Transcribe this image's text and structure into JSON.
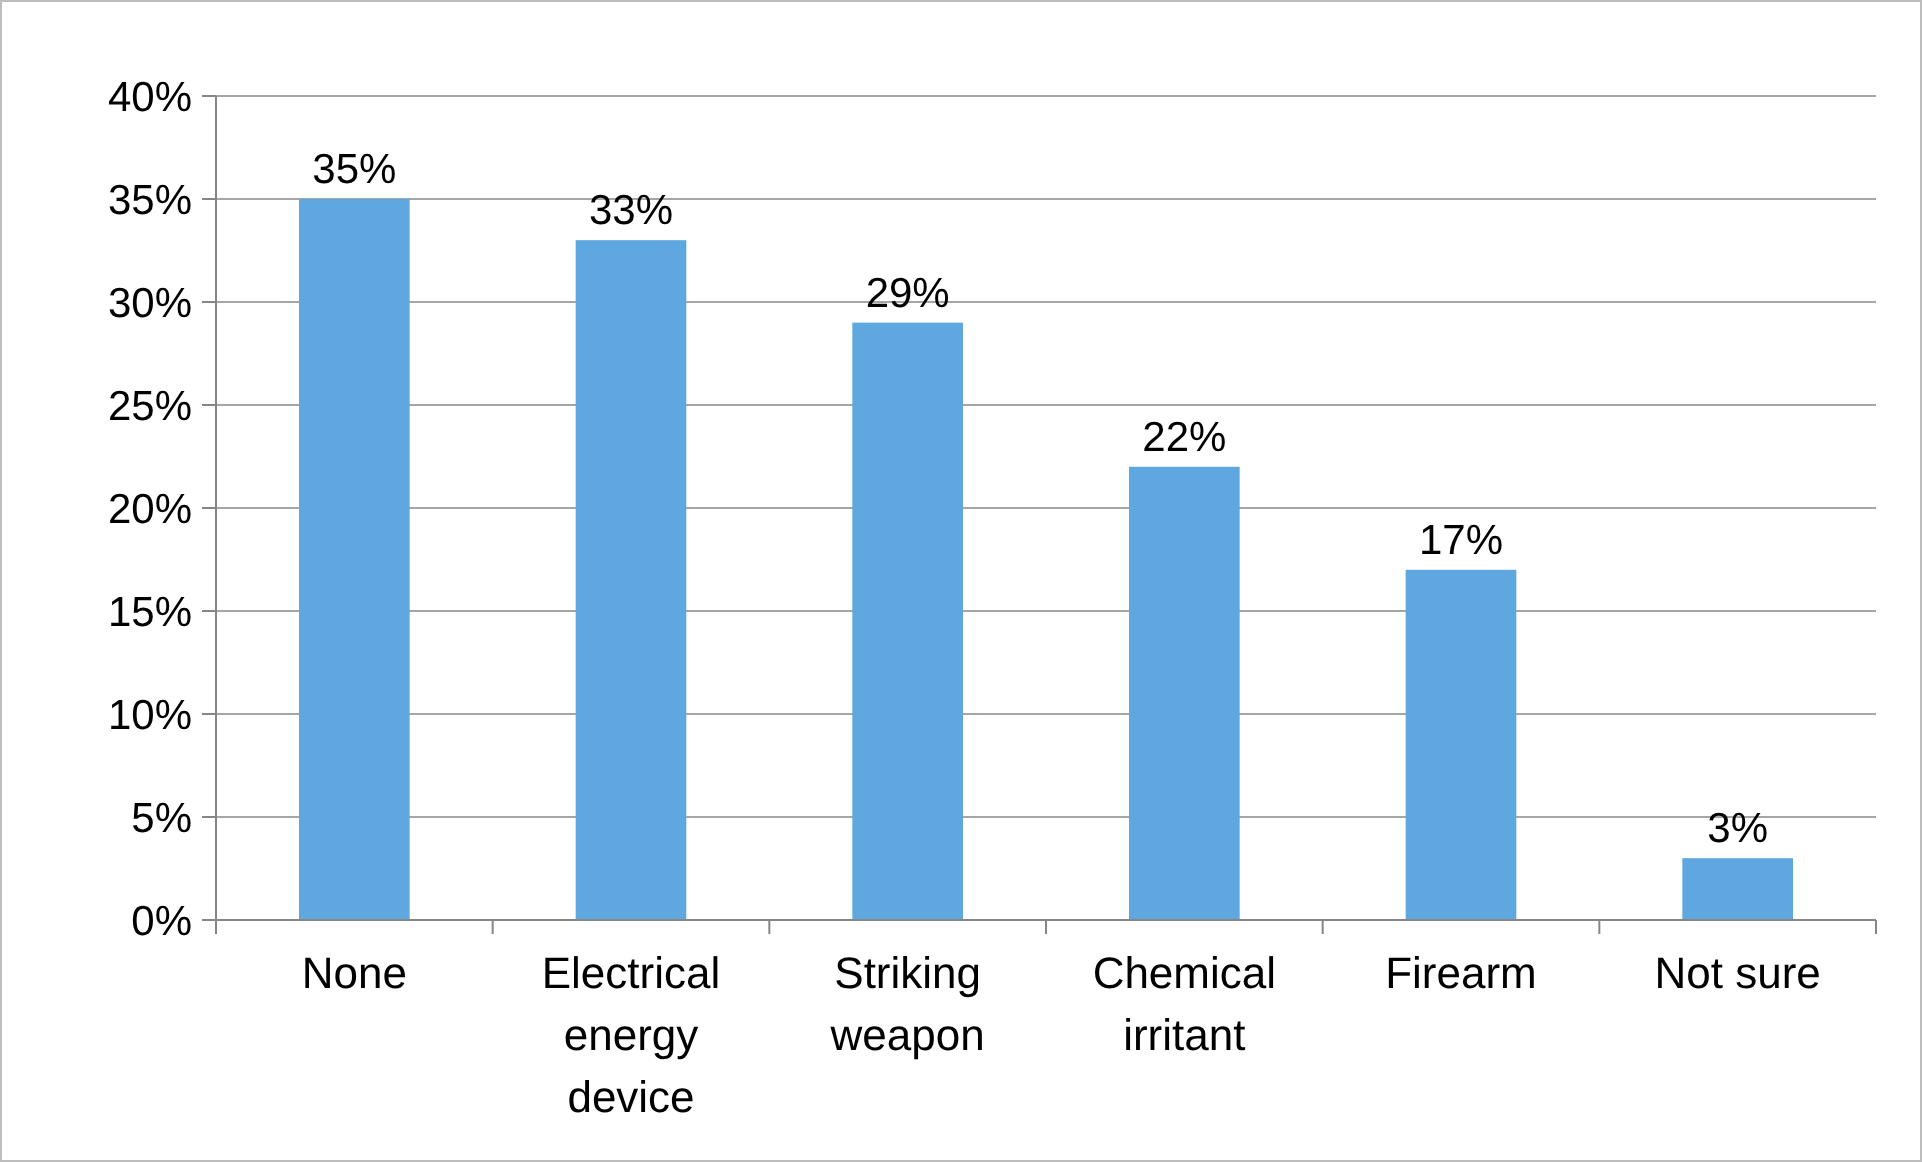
{
  "chart_data": {
    "type": "bar",
    "categories": [
      "None",
      "Electrical energy device",
      "Striking weapon",
      "Chemical irritant",
      "Firearm",
      "Not sure"
    ],
    "values": [
      35,
      33,
      29,
      22,
      17,
      3
    ],
    "value_labels": [
      "35%",
      "33%",
      "29%",
      "22%",
      "17%",
      "3%"
    ],
    "color": "#5ea7df",
    "ylim": [
      0,
      40
    ],
    "yticks": [
      {
        "value": 0,
        "label": "0%"
      },
      {
        "value": 5,
        "label": "5%"
      },
      {
        "value": 10,
        "label": "10%"
      },
      {
        "value": 15,
        "label": "15%"
      },
      {
        "value": 20,
        "label": "20%"
      },
      {
        "value": 25,
        "label": "25%"
      },
      {
        "value": 30,
        "label": "30%"
      },
      {
        "value": 35,
        "label": "35%"
      },
      {
        "value": 40,
        "label": "40%"
      }
    ],
    "grid": "y"
  }
}
